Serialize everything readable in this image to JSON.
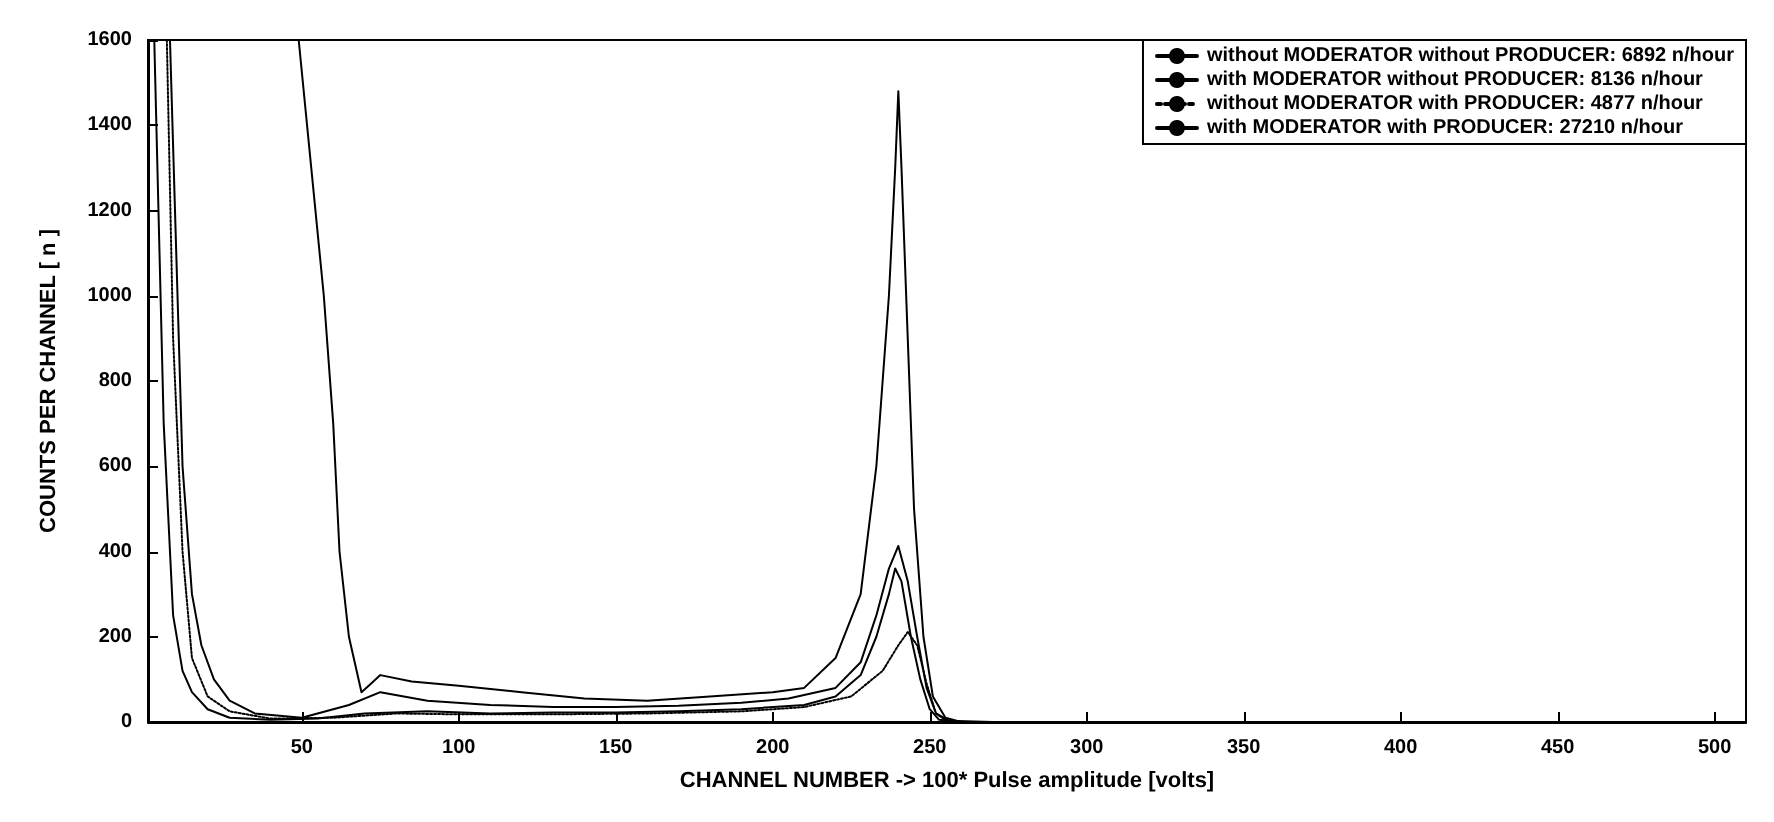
{
  "chart_data": {
    "type": "line",
    "xlabel": "CHANNEL NUMBER -> 100* Pulse amplitude [volts]",
    "ylabel": "COUNTS PER CHANNEL [ n ]",
    "xlim": [
      1,
      510
    ],
    "xticks": [
      50,
      100,
      150,
      200,
      250,
      300,
      350,
      400,
      450,
      500
    ],
    "ylim": [
      0,
      1600
    ],
    "yticks": [
      0,
      200,
      400,
      600,
      800,
      1000,
      1200,
      1400,
      1600
    ],
    "grid": false,
    "legend": "top right",
    "marker": "none",
    "line_style": "solid",
    "series": [
      {
        "name": "without MODERATOR without PRODUCER: 6892 n/hour",
        "color": "#000000",
        "x": [
          3,
          6,
          9,
          12,
          15,
          20,
          27,
          40,
          55,
          70,
          90,
          110,
          130,
          150,
          170,
          190,
          210,
          220,
          228,
          233,
          237,
          239,
          241,
          244,
          247,
          250,
          253,
          260,
          300,
          400,
          510
        ],
        "values": [
          1600,
          700,
          250,
          120,
          70,
          30,
          10,
          5,
          8,
          20,
          25,
          20,
          22,
          22,
          25,
          30,
          40,
          60,
          110,
          200,
          300,
          360,
          330,
          200,
          100,
          30,
          5,
          0,
          0,
          0,
          0
        ]
      },
      {
        "name": "with MODERATOR without PRODUCER: 8136 n/hour",
        "color": "#000000",
        "x": [
          8,
          10,
          12,
          15,
          18,
          22,
          27,
          35,
          50,
          65,
          75,
          90,
          110,
          130,
          150,
          170,
          190,
          205,
          220,
          228,
          233,
          237,
          240,
          243,
          246,
          249,
          252,
          256,
          270,
          400,
          510
        ],
        "values": [
          1600,
          1100,
          600,
          300,
          180,
          100,
          50,
          20,
          10,
          40,
          70,
          50,
          40,
          35,
          35,
          38,
          45,
          55,
          80,
          140,
          250,
          360,
          413,
          330,
          200,
          80,
          20,
          3,
          0,
          0,
          0
        ]
      },
      {
        "name": "without MODERATOR with PRODUCER: 4877 n/hour",
        "color": "#000000",
        "line_style": "dotted",
        "x": [
          7,
          9,
          12,
          15,
          20,
          27,
          40,
          60,
          80,
          100,
          130,
          160,
          190,
          210,
          225,
          235,
          240,
          243,
          246,
          249,
          252,
          256,
          300,
          510
        ],
        "values": [
          1600,
          900,
          400,
          150,
          60,
          25,
          8,
          10,
          20,
          18,
          18,
          20,
          25,
          35,
          60,
          120,
          180,
          211,
          180,
          90,
          20,
          0,
          0,
          0
        ]
      },
      {
        "name": "with MODERATOR with PRODUCER: 27210 n/hour",
        "color": "#000000",
        "x": [
          49,
          53,
          57,
          60,
          62,
          65,
          69,
          72,
          75,
          85,
          100,
          120,
          140,
          160,
          180,
          200,
          210,
          220,
          228,
          233,
          237,
          239,
          240,
          241,
          243,
          245,
          248,
          251,
          255,
          260,
          510
        ],
        "values": [
          1600,
          1300,
          1000,
          700,
          400,
          200,
          70,
          90,
          110,
          95,
          85,
          70,
          55,
          50,
          60,
          70,
          80,
          150,
          300,
          600,
          1000,
          1300,
          1480,
          1300,
          900,
          500,
          200,
          60,
          10,
          0,
          0
        ]
      }
    ]
  }
}
